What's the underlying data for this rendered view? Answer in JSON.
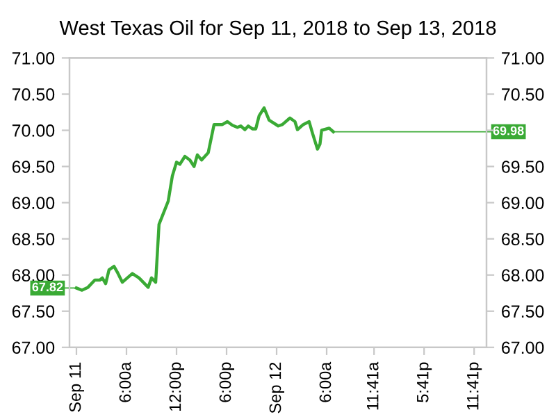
{
  "chart_data": {
    "type": "line",
    "title": "West Texas Oil for Sep 11, 2018 to Sep 13, 2018",
    "x": [
      "2018-09-11T00:00",
      "2018-09-11T00:40",
      "2018-09-11T01:23",
      "2018-09-11T02:12",
      "2018-09-11T02:48",
      "2018-09-11T03:06",
      "2018-09-11T03:30",
      "2018-09-11T03:54",
      "2018-09-11T04:30",
      "2018-09-11T04:54",
      "2018-09-11T05:30",
      "2018-09-11T06:42",
      "2018-09-11T07:30",
      "2018-09-11T08:36",
      "2018-09-11T09:00",
      "2018-09-11T09:30",
      "2018-09-11T09:54",
      "2018-09-11T11:00",
      "2018-09-11T11:30",
      "2018-09-11T12:00",
      "2018-09-11T12:24",
      "2018-09-11T13:00",
      "2018-09-11T13:36",
      "2018-09-11T14:06",
      "2018-09-11T14:30",
      "2018-09-11T15:00",
      "2018-09-11T15:48",
      "2018-09-11T16:30",
      "2018-09-11T17:30",
      "2018-09-11T18:06",
      "2018-09-11T18:42",
      "2018-09-11T19:18",
      "2018-09-11T19:42",
      "2018-09-11T20:12",
      "2018-09-11T20:36",
      "2018-09-11T21:06",
      "2018-09-11T21:30",
      "2018-09-11T21:54",
      "2018-09-11T22:30",
      "2018-09-11T23:06",
      "2018-09-12T00:12",
      "2018-09-12T00:42",
      "2018-09-12T01:36",
      "2018-09-12T02:12",
      "2018-09-12T02:30",
      "2018-09-12T03:12",
      "2018-09-12T03:54",
      "2018-09-12T04:18",
      "2018-09-12T04:54",
      "2018-09-12T05:12",
      "2018-09-12T05:24",
      "2018-09-12T06:18",
      "2018-09-12T06:48"
    ],
    "series": [
      {
        "color": "#3aaa35",
        "values": [
          67.82,
          67.79,
          67.83,
          67.93,
          67.93,
          67.96,
          67.88,
          68.07,
          68.12,
          68.04,
          67.9,
          68.02,
          67.96,
          67.83,
          67.96,
          67.9,
          68.7,
          69.02,
          69.37,
          69.56,
          69.53,
          69.64,
          69.59,
          69.5,
          69.66,
          69.59,
          69.69,
          70.08,
          70.08,
          70.12,
          70.07,
          70.04,
          70.06,
          70.01,
          70.06,
          70.02,
          70.02,
          70.2,
          70.31,
          70.14,
          70.06,
          70.08,
          70.17,
          70.12,
          70.01,
          70.08,
          70.12,
          69.96,
          69.74,
          69.81,
          70.0,
          70.03,
          69.98
        ]
      }
    ],
    "xlim": [
      "2018-09-10T23:10",
      "2018-09-13T01:10"
    ],
    "xticks": [
      {
        "value": "2018-09-11T00:00",
        "label": "Sep 11"
      },
      {
        "value": "2018-09-11T06:00",
        "label": "6:00a"
      },
      {
        "value": "2018-09-11T12:00",
        "label": "12:00p"
      },
      {
        "value": "2018-09-11T18:00",
        "label": "6:00p"
      },
      {
        "value": "2018-09-12T00:00",
        "label": "Sep 12"
      },
      {
        "value": "2018-09-12T06:00",
        "label": "6:00a"
      },
      {
        "value": "2018-09-12T11:41",
        "label": "11:41a"
      },
      {
        "value": "2018-09-12T17:41",
        "label": "5:41p"
      },
      {
        "value": "2018-09-12T23:41",
        "label": "11:41p"
      }
    ],
    "ylim": [
      67,
      71
    ],
    "yticks": [
      {
        "value": 67,
        "label": "67.00"
      },
      {
        "value": 67.5,
        "label": "67.50"
      },
      {
        "value": 68,
        "label": "68.00"
      },
      {
        "value": 68.5,
        "label": "68.50"
      },
      {
        "value": 69,
        "label": "69.00"
      },
      {
        "value": 69.5,
        "label": "69.50"
      },
      {
        "value": 70,
        "label": "70.00"
      },
      {
        "value": 70.5,
        "label": "70.50"
      },
      {
        "value": 71,
        "label": "71.00"
      }
    ],
    "y2lim": [
      67,
      71
    ],
    "y2ticks": [
      {
        "value": 67,
        "label": "67.00"
      },
      {
        "value": 67.5,
        "label": "67.50"
      },
      {
        "value": 68,
        "label": "68.00"
      },
      {
        "value": 68.5,
        "label": "68.50"
      },
      {
        "value": 69,
        "label": "69.00"
      },
      {
        "value": 69.5,
        "label": "69.50"
      },
      {
        "value": 70,
        "label": null
      },
      {
        "value": 70.5,
        "label": "70.50"
      },
      {
        "value": 71,
        "label": "71.00"
      }
    ],
    "annotations": [
      {
        "text": "67.82",
        "x": "2018-09-11T00:00",
        "y": 67.82
      },
      {
        "text": "69.98",
        "x": "2018-09-12T06:48",
        "y": 69.98
      }
    ],
    "grid": false,
    "legend": false,
    "marker": "none",
    "line_style": "solid"
  }
}
